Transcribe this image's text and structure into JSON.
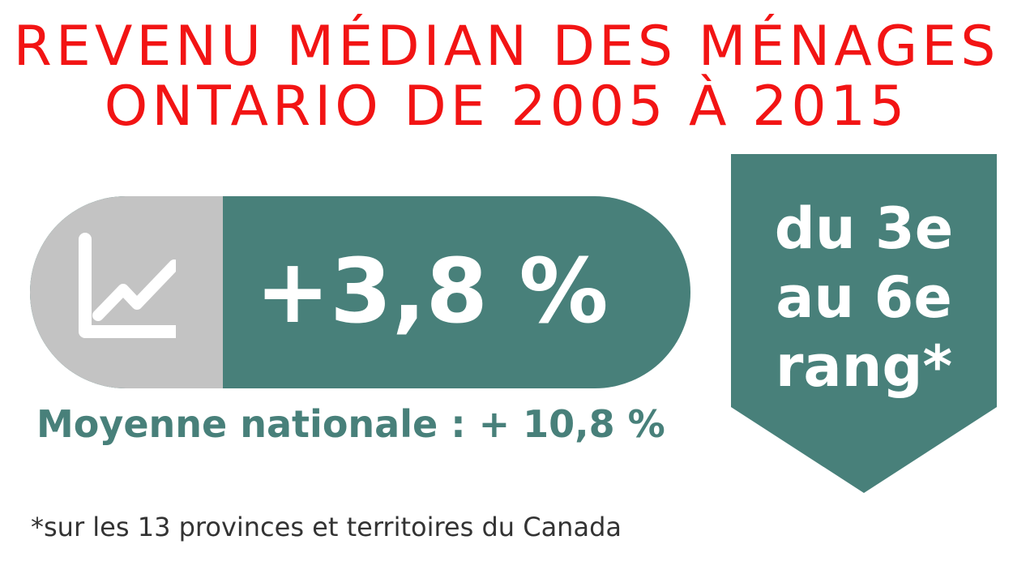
{
  "title": {
    "line1": "REVENU MÉDIAN DES MÉNAGES",
    "line2": "ONTARIO DE 2005 À 2015"
  },
  "pill": {
    "icon": "line-chart-icon",
    "value": "+3,8 %"
  },
  "national_average": "Moyenne nationale : + 10,8 %",
  "badge": {
    "line1": "du 3e",
    "line2": "au 6e",
    "line3": "rang*"
  },
  "footnote": "*sur les 13 provinces et territoires du Canada",
  "colors": {
    "title": "#f21414",
    "accent": "#48807a",
    "icon_bg": "#c3c3c3"
  }
}
